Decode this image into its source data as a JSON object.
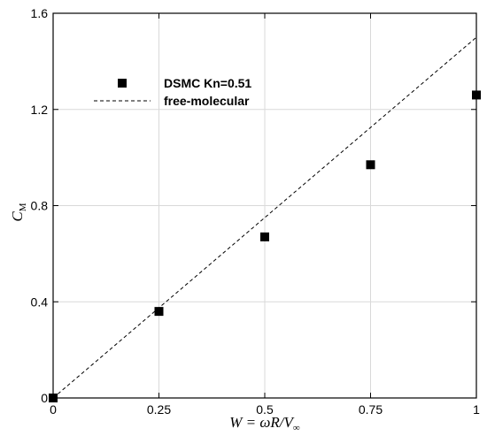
{
  "chart_data": {
    "type": "scatter",
    "xlabel": "W = ωR/V∞",
    "xlabel_parts": {
      "var": "W",
      "eq": " = ωR/V",
      "sub": "∞"
    },
    "ylabel_parts": {
      "var": "C",
      "sub": "M"
    },
    "xlim": [
      0,
      1
    ],
    "ylim": [
      0,
      1.6
    ],
    "x_ticks": [
      0,
      0.25,
      0.5,
      0.75,
      1
    ],
    "x_tick_labels": [
      "0",
      "0.25",
      "0.5",
      "0.75",
      "1"
    ],
    "y_ticks": [
      0,
      0.4,
      0.8,
      1.2,
      1.6
    ],
    "y_tick_labels": [
      "0",
      "0.4",
      "0.8",
      "1.2",
      "1.6"
    ],
    "grid": true,
    "legend_position": "top-left",
    "series": [
      {
        "name": "DSMC Kn=0.51",
        "kind": "scatter",
        "marker": "square",
        "color": "#000000",
        "x": [
          0,
          0.25,
          0.5,
          0.75,
          1.0
        ],
        "y": [
          0.0,
          0.36,
          0.67,
          0.97,
          1.26
        ]
      },
      {
        "name": "free-molecular",
        "kind": "line",
        "style": "dashed",
        "color": "#000000",
        "x": [
          0,
          1.0
        ],
        "y": [
          0.0,
          1.5
        ]
      }
    ]
  }
}
